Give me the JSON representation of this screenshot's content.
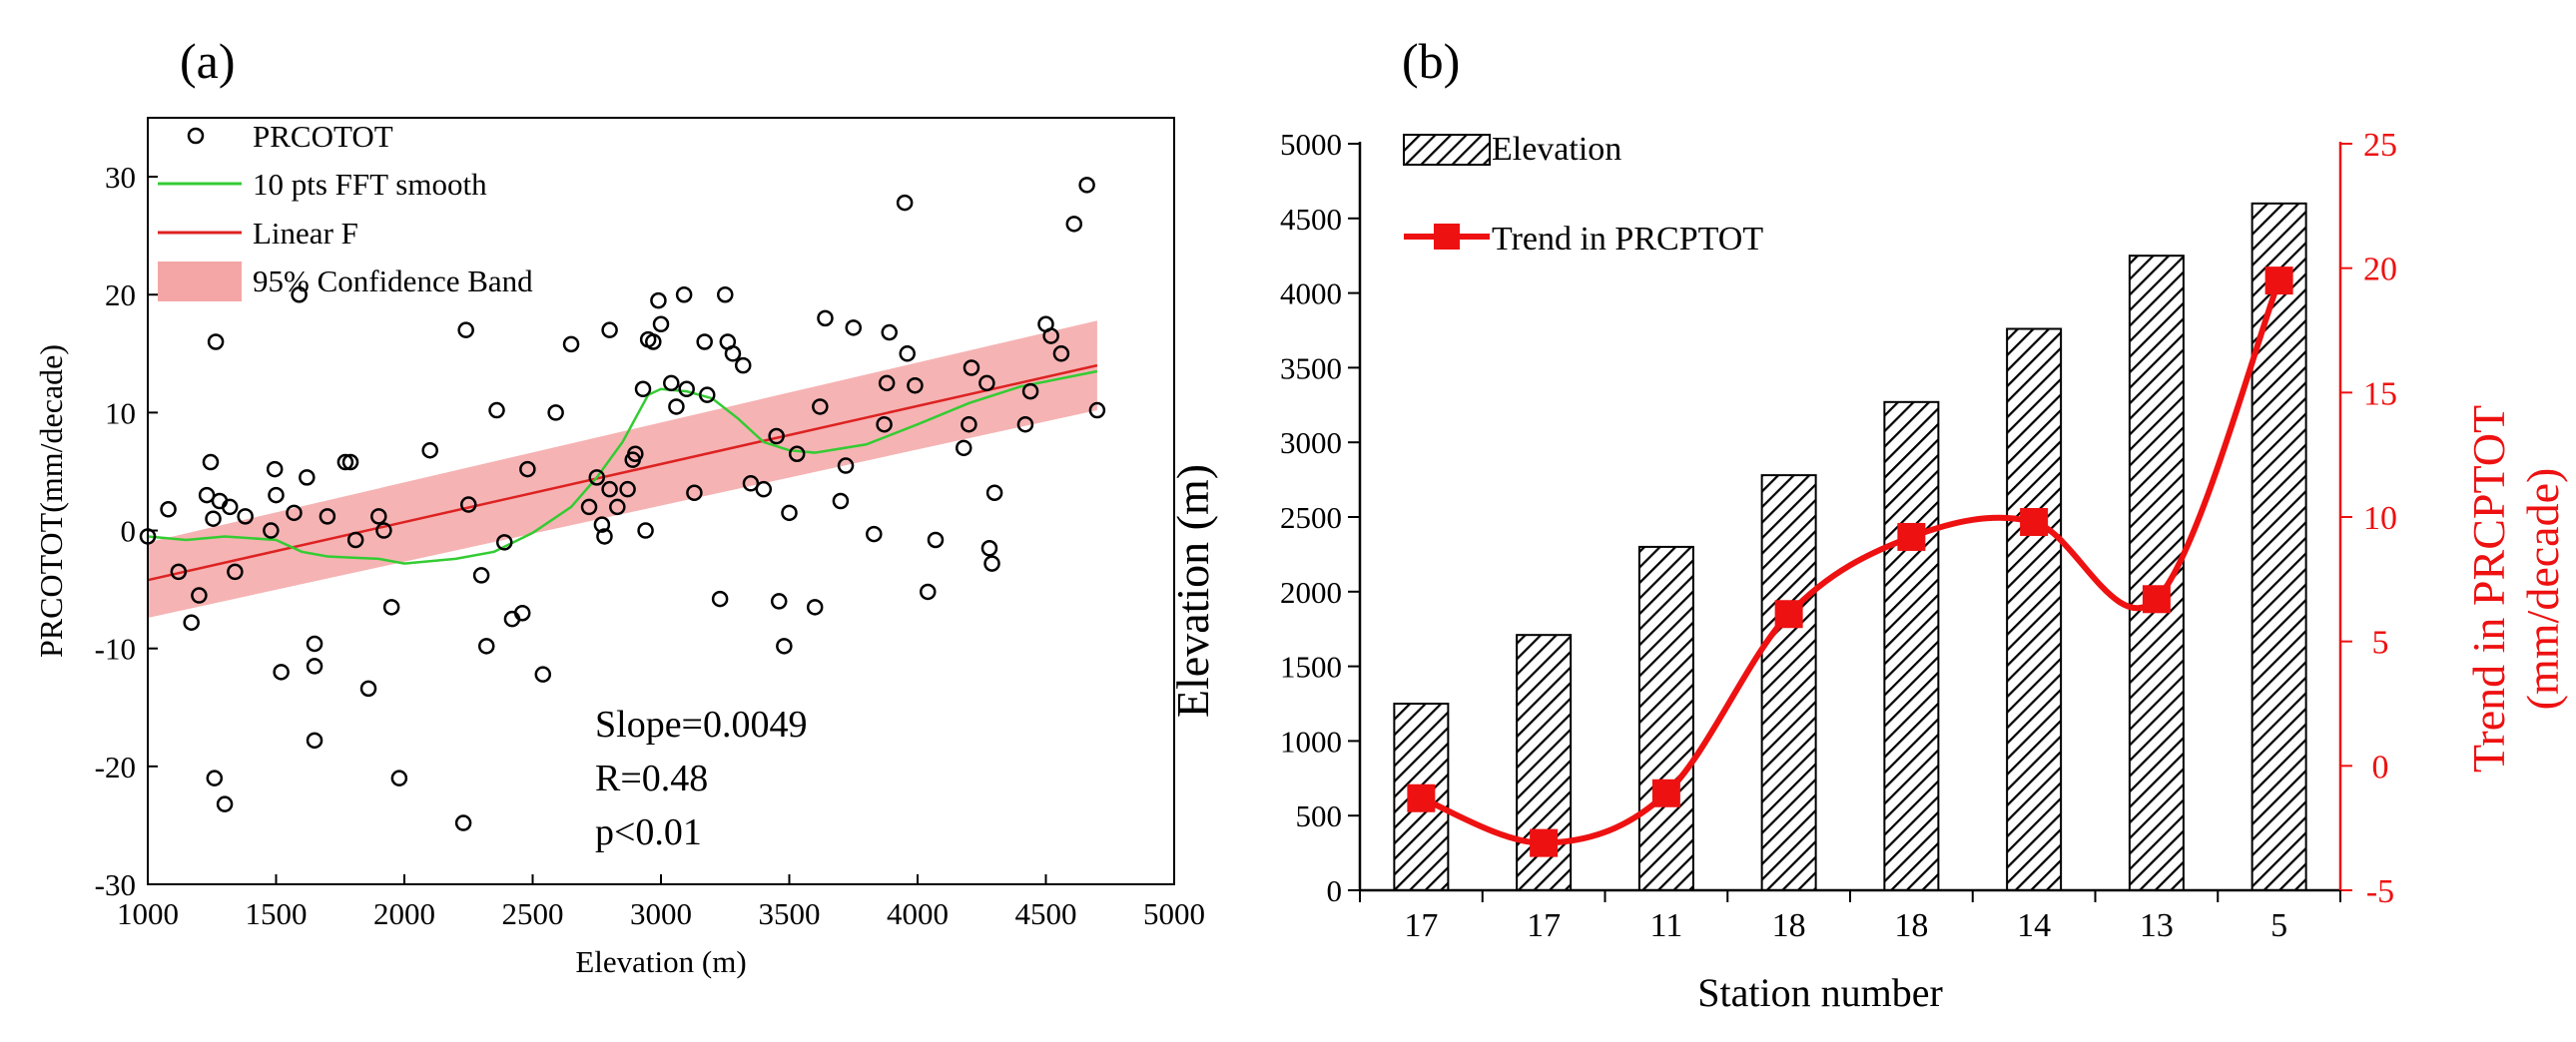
{
  "colors": {
    "scatter": "#000000",
    "smooth": "#33cc33",
    "fit": "#dd2222",
    "band": "#f4a6a6",
    "bar_hatch": "#000000",
    "trend": "#ee1111"
  },
  "chart_data": [
    {
      "panel_label": "(a)",
      "type": "scatter",
      "xlabel": "Elevation (m)",
      "ylabel": "PRCOTOT(mm/decade)",
      "xlim": [
        1000,
        5000
      ],
      "ylim": [
        -30,
        35
      ],
      "xticks": [
        "1000",
        "1500",
        "2000",
        "2500",
        "3000",
        "3500",
        "4000",
        "4500",
        "5000"
      ],
      "yticks": [
        "-30",
        "-20",
        "-10",
        "0",
        "10",
        "20",
        "30"
      ],
      "legend": {
        "position": "top-left",
        "scatter": "PRCOTOT",
        "smooth": "10 pts FFT smooth",
        "fit": "Linear F",
        "band": "95% Confidence Band"
      },
      "annotations": [
        "Slope=0.0049",
        "R=0.48",
        "p<0.01"
      ],
      "fit_line": {
        "x": [
          1000,
          4700
        ],
        "y": [
          -4.2,
          14.0
        ]
      },
      "confidence_band": {
        "x": [
          1000,
          4700
        ],
        "upper": [
          -1.0,
          17.8
        ],
        "lower": [
          -7.4,
          10.2
        ]
      },
      "smooth": {
        "x": [
          1000,
          1150,
          1300,
          1500,
          1600,
          1700,
          1800,
          1900,
          2000,
          2200,
          2350,
          2500,
          2650,
          2750,
          2850,
          2950,
          3000,
          3100,
          3200,
          3300,
          3400,
          3500,
          3600,
          3800,
          4000,
          4200,
          4400,
          4700
        ],
        "y": [
          -0.5,
          -0.8,
          -0.5,
          -0.8,
          -1.8,
          -2.2,
          -2.3,
          -2.4,
          -2.8,
          -2.4,
          -1.8,
          -0.2,
          2.0,
          4.5,
          7.5,
          11.5,
          12.0,
          11.8,
          11.2,
          9.5,
          7.5,
          6.8,
          6.6,
          7.3,
          9.0,
          10.8,
          12.2,
          13.5
        ]
      },
      "points": [
        [
          1000,
          -0.5
        ],
        [
          1080,
          1.8
        ],
        [
          1120,
          -3.5
        ],
        [
          1170,
          -7.8
        ],
        [
          1200,
          -5.5
        ],
        [
          1230,
          3.0
        ],
        [
          1245,
          5.8
        ],
        [
          1255,
          1.0
        ],
        [
          1260,
          -21.0
        ],
        [
          1265,
          16.0
        ],
        [
          1280,
          2.5
        ],
        [
          1300,
          -23.2
        ],
        [
          1320,
          2.0
        ],
        [
          1340,
          -3.5
        ],
        [
          1380,
          1.2
        ],
        [
          1480,
          0.0
        ],
        [
          1495,
          5.2
        ],
        [
          1500,
          3.0
        ],
        [
          1520,
          -12.0
        ],
        [
          1570,
          1.5
        ],
        [
          1590,
          20.0
        ],
        [
          1620,
          4.5
        ],
        [
          1650,
          -9.6
        ],
        [
          1650,
          -11.5
        ],
        [
          1650,
          -17.8
        ],
        [
          1700,
          1.2
        ],
        [
          1770,
          5.8
        ],
        [
          1790,
          5.8
        ],
        [
          1810,
          -0.8
        ],
        [
          1860,
          -13.4
        ],
        [
          1900,
          1.2
        ],
        [
          1920,
          0.0
        ],
        [
          1950,
          -6.5
        ],
        [
          1980,
          -21.0
        ],
        [
          2100,
          6.8
        ],
        [
          2230,
          -24.8
        ],
        [
          2240,
          17.0
        ],
        [
          2250,
          2.2
        ],
        [
          2300,
          -3.8
        ],
        [
          2320,
          -9.8
        ],
        [
          2360,
          10.2
        ],
        [
          2390,
          -1.0
        ],
        [
          2420,
          -7.5
        ],
        [
          2460,
          -7.0
        ],
        [
          2480,
          5.2
        ],
        [
          2540,
          -12.2
        ],
        [
          2590,
          10.0
        ],
        [
          2650,
          15.8
        ],
        [
          2720,
          2.0
        ],
        [
          2750,
          4.5
        ],
        [
          2770,
          0.5
        ],
        [
          2780,
          -0.5
        ],
        [
          2800,
          3.5
        ],
        [
          2800,
          17.0
        ],
        [
          2830,
          2.0
        ],
        [
          2870,
          3.5
        ],
        [
          2890,
          6.0
        ],
        [
          2900,
          6.5
        ],
        [
          2930,
          12.0
        ],
        [
          2940,
          0.0
        ],
        [
          2950,
          16.2
        ],
        [
          2970,
          16.0
        ],
        [
          2990,
          19.5
        ],
        [
          3000,
          17.5
        ],
        [
          3040,
          12.5
        ],
        [
          3060,
          10.5
        ],
        [
          3090,
          20.0
        ],
        [
          3100,
          12.0
        ],
        [
          3130,
          3.2
        ],
        [
          3170,
          16.0
        ],
        [
          3180,
          11.5
        ],
        [
          3230,
          -5.8
        ],
        [
          3250,
          20.0
        ],
        [
          3260,
          16.0
        ],
        [
          3280,
          15.0
        ],
        [
          3320,
          14.0
        ],
        [
          3350,
          4.0
        ],
        [
          3400,
          3.5
        ],
        [
          3450,
          8.0
        ],
        [
          3460,
          -6.0
        ],
        [
          3480,
          -9.8
        ],
        [
          3500,
          1.5
        ],
        [
          3530,
          6.5
        ],
        [
          3600,
          -6.5
        ],
        [
          3620,
          10.5
        ],
        [
          3640,
          18.0
        ],
        [
          3700,
          2.5
        ],
        [
          3720,
          5.5
        ],
        [
          3750,
          17.2
        ],
        [
          3830,
          -0.3
        ],
        [
          3870,
          9.0
        ],
        [
          3880,
          12.5
        ],
        [
          3890,
          16.8
        ],
        [
          3950,
          27.8
        ],
        [
          3960,
          15.0
        ],
        [
          3990,
          12.3
        ],
        [
          4040,
          -5.2
        ],
        [
          4070,
          -0.8
        ],
        [
          4180,
          7.0
        ],
        [
          4200,
          9.0
        ],
        [
          4210,
          13.8
        ],
        [
          4270,
          12.5
        ],
        [
          4280,
          -1.5
        ],
        [
          4290,
          -2.8
        ],
        [
          4300,
          3.2
        ],
        [
          4420,
          9.0
        ],
        [
          4440,
          11.8
        ],
        [
          4500,
          17.5
        ],
        [
          4520,
          16.5
        ],
        [
          4560,
          15.0
        ],
        [
          4610,
          26.0
        ],
        [
          4660,
          29.3
        ],
        [
          4700,
          10.2
        ]
      ]
    },
    {
      "panel_label": "(b)",
      "type": "bar",
      "xlabel": "Station number",
      "ylabel": "Elevation (m)",
      "y2label": "Trend in PRCPTOT",
      "y2label2": "(mm/decade)",
      "categories": [
        "17",
        "17",
        "11",
        "18",
        "18",
        "14",
        "13",
        "5"
      ],
      "ylim": [
        0,
        5000
      ],
      "y2lim": [
        -5,
        25
      ],
      "yticks": [
        "0",
        "500",
        "1000",
        "1500",
        "2000",
        "2500",
        "3000",
        "3500",
        "4000",
        "4500",
        "5000"
      ],
      "y2ticks": [
        "-5",
        "0",
        "5",
        "10",
        "15",
        "20",
        "25"
      ],
      "series": [
        {
          "name": "Elevation",
          "type": "bar",
          "axis": "left",
          "values": [
            1250,
            1710,
            2300,
            2780,
            3270,
            3760,
            4250,
            4600
          ]
        },
        {
          "name": "Trend in PRCPTOT",
          "type": "line",
          "axis": "right",
          "values": [
            -1.3,
            -3.1,
            -1.1,
            6.1,
            9.2,
            9.8,
            6.7,
            19.5
          ]
        }
      ],
      "legend": {
        "position": "top-left"
      }
    }
  ]
}
